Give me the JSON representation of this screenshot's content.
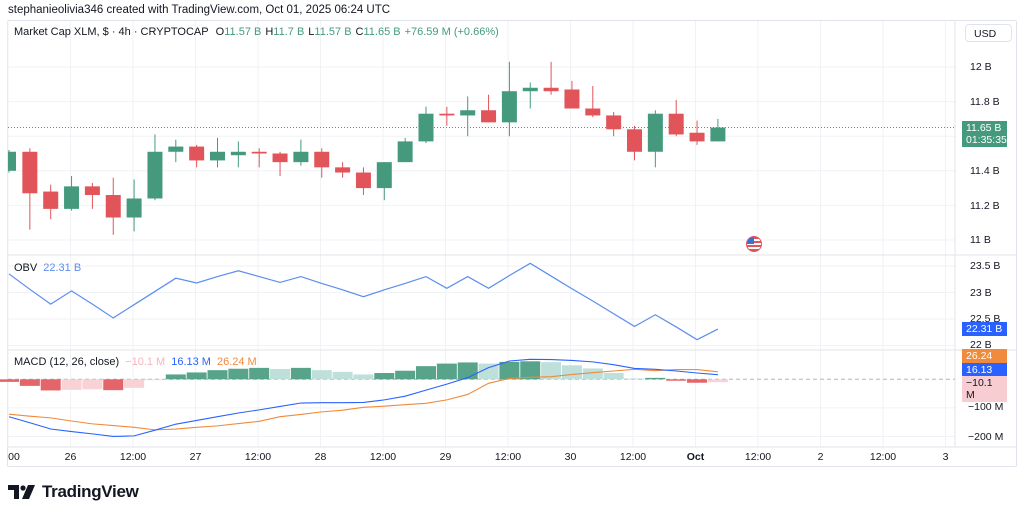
{
  "credit": "stephanieolivia346 created with TradingView.com, Oct 01, 2025 06:24 UTC",
  "legend": {
    "symbol": "Market Cap XLM, $ · 4h · CRYPTOCAP",
    "o_label": "O",
    "o": "11.57 B",
    "h_label": "H",
    "h": "11.7 B",
    "l_label": "L",
    "l": "11.57 B",
    "c_label": "C",
    "c": "11.65 B",
    "change": "+76.59 M (+0.66%)"
  },
  "currency_button": "USD",
  "price_axis": [
    "12 B",
    "11.8 B",
    "11.4 B",
    "11.2 B",
    "11 B"
  ],
  "price_tag": {
    "value": "11.65 B",
    "countdown": "01:35:35"
  },
  "obv": {
    "label": "OBV",
    "value": "22.31 B",
    "axis": [
      "23.5 B",
      "23 B",
      "22.5 B",
      "22 B"
    ]
  },
  "macd": {
    "label": "MACD (12, 26, close)",
    "hist_value": "−10.1 M",
    "macd_value": "16.13 M",
    "signal_value": "26.24 M",
    "axis": [
      "−100 M",
      "−200 M"
    ]
  },
  "time_axis": [
    "00",
    "26",
    "12:00",
    "27",
    "12:00",
    "28",
    "12:00",
    "29",
    "12:00",
    "30",
    "12:00",
    "Oct",
    "12:00",
    "2",
    "12:00",
    "3"
  ],
  "logo_text": "TradingView",
  "event_icon": "us-flag-icon",
  "colors": {
    "up": "#459a7e",
    "down": "#e0545a",
    "obv": "#5b8def",
    "macd": "#2962ff",
    "signal": "#f08a3c",
    "hist_up_light": "#b7dcd6",
    "hist_down_light": "#f8cdd2"
  },
  "chart_data": {
    "type": "candlestick",
    "interval": "4h",
    "ylim": [
      10.95,
      12.1
    ],
    "candles": [
      {
        "o": 11.4,
        "h": 11.52,
        "l": 11.39,
        "c": 11.51
      },
      {
        "o": 11.51,
        "h": 11.53,
        "l": 11.06,
        "c": 11.27
      },
      {
        "o": 11.28,
        "h": 11.32,
        "l": 11.12,
        "c": 11.18
      },
      {
        "o": 11.18,
        "h": 11.37,
        "l": 11.17,
        "c": 11.31
      },
      {
        "o": 11.31,
        "h": 11.33,
        "l": 11.18,
        "c": 11.26
      },
      {
        "o": 11.26,
        "h": 11.36,
        "l": 11.03,
        "c": 11.13
      },
      {
        "o": 11.13,
        "h": 11.35,
        "l": 11.05,
        "c": 11.24
      },
      {
        "o": 11.24,
        "h": 11.61,
        "l": 11.23,
        "c": 11.51
      },
      {
        "o": 11.51,
        "h": 11.58,
        "l": 11.45,
        "c": 11.54
      },
      {
        "o": 11.54,
        "h": 11.55,
        "l": 11.42,
        "c": 11.46
      },
      {
        "o": 11.46,
        "h": 11.59,
        "l": 11.42,
        "c": 11.51
      },
      {
        "o": 11.49,
        "h": 11.57,
        "l": 11.42,
        "c": 11.51
      },
      {
        "o": 11.51,
        "h": 11.53,
        "l": 11.42,
        "c": 11.5
      },
      {
        "o": 11.5,
        "h": 11.51,
        "l": 11.37,
        "c": 11.45
      },
      {
        "o": 11.45,
        "h": 11.58,
        "l": 11.43,
        "c": 11.51
      },
      {
        "o": 11.51,
        "h": 11.53,
        "l": 11.36,
        "c": 11.42
      },
      {
        "o": 11.42,
        "h": 11.45,
        "l": 11.36,
        "c": 11.39
      },
      {
        "o": 11.39,
        "h": 11.42,
        "l": 11.26,
        "c": 11.3
      },
      {
        "o": 11.3,
        "h": 11.45,
        "l": 11.23,
        "c": 11.45
      },
      {
        "o": 11.45,
        "h": 11.59,
        "l": 11.45,
        "c": 11.57
      },
      {
        "o": 11.57,
        "h": 11.77,
        "l": 11.56,
        "c": 11.73
      },
      {
        "o": 11.73,
        "h": 11.77,
        "l": 11.66,
        "c": 11.72
      },
      {
        "o": 11.72,
        "h": 11.83,
        "l": 11.6,
        "c": 11.75
      },
      {
        "o": 11.75,
        "h": 11.84,
        "l": 11.68,
        "c": 11.68
      },
      {
        "o": 11.68,
        "h": 12.03,
        "l": 11.6,
        "c": 11.86
      },
      {
        "o": 11.86,
        "h": 11.91,
        "l": 11.76,
        "c": 11.88
      },
      {
        "o": 11.88,
        "h": 12.03,
        "l": 11.84,
        "c": 11.86
      },
      {
        "o": 11.87,
        "h": 11.92,
        "l": 11.76,
        "c": 11.76
      },
      {
        "o": 11.76,
        "h": 11.89,
        "l": 11.71,
        "c": 11.72
      },
      {
        "o": 11.72,
        "h": 11.74,
        "l": 11.6,
        "c": 11.64
      },
      {
        "o": 11.64,
        "h": 11.66,
        "l": 11.46,
        "c": 11.51
      },
      {
        "o": 11.51,
        "h": 11.75,
        "l": 11.42,
        "c": 11.73
      },
      {
        "o": 11.73,
        "h": 11.81,
        "l": 11.6,
        "c": 11.61
      },
      {
        "o": 11.62,
        "h": 11.69,
        "l": 11.55,
        "c": 11.57
      },
      {
        "o": 11.57,
        "h": 11.7,
        "l": 11.57,
        "c": 11.65
      }
    ],
    "last_price": 11.65,
    "obv": {
      "unit": "B",
      "ylim": [
        21.9,
        23.7
      ],
      "values": [
        23.35,
        23.06,
        22.78,
        23.03,
        22.78,
        22.52,
        22.77,
        23.02,
        23.27,
        23.18,
        23.3,
        23.41,
        23.3,
        23.19,
        23.3,
        23.17,
        23.05,
        22.92,
        23.05,
        23.17,
        23.3,
        23.08,
        23.3,
        23.08,
        23.32,
        23.55,
        23.31,
        23.07,
        22.84,
        22.6,
        22.36,
        22.58,
        22.35,
        22.11,
        22.31
      ]
    },
    "macd": {
      "unit": "M",
      "ylim": [
        -230,
        75
      ],
      "histogram": [
        -9,
        -23,
        -39,
        -37,
        -35,
        -38,
        -30,
        -1,
        17,
        24,
        32,
        37,
        40,
        36,
        40,
        32,
        26,
        17,
        22,
        30,
        46,
        55,
        59,
        55,
        61,
        63,
        60,
        49,
        38,
        22,
        3,
        5,
        -5,
        -12,
        -10.1
      ],
      "macd": [
        -131,
        -152,
        -174,
        -183,
        -191,
        -200,
        -198,
        -178,
        -157,
        -144,
        -131,
        -118,
        -107,
        -95,
        -83,
        -82,
        -82,
        -81,
        -72,
        -59,
        -38,
        -17,
        6,
        41,
        64,
        70,
        69,
        66,
        61,
        51,
        38,
        35,
        29,
        22,
        16.13
      ],
      "signal": [
        -122,
        -129,
        -135,
        -146,
        -156,
        -162,
        -168,
        -177,
        -174,
        -168,
        -163,
        -155,
        -147,
        -131,
        -123,
        -114,
        -108,
        -98,
        -94,
        -89,
        -84,
        -72,
        -53,
        -14,
        3,
        7,
        9,
        17,
        23,
        29,
        35,
        30,
        34,
        34,
        26.24
      ]
    }
  }
}
